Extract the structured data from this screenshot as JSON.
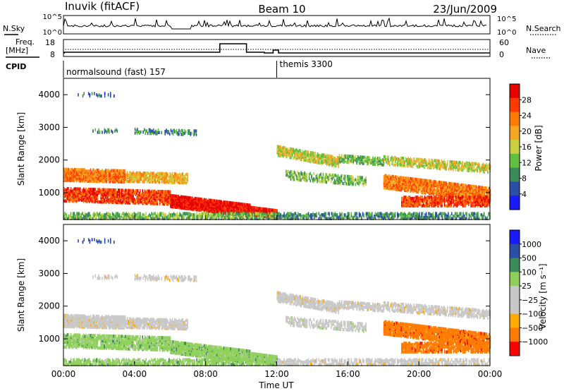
{
  "header": {
    "station": "Inuvik (fitACF)",
    "beam": "Beam 10",
    "date": "23/Jun/2009"
  },
  "top_panel": {
    "left_label": "N.Sky",
    "left_ticks": [
      "10^5",
      "10^0"
    ],
    "right_label": "N.Search",
    "right_ticks": [
      "10^5",
      "10^0"
    ],
    "right_legend_style": "dotted"
  },
  "freq_panel": {
    "left_label_1": "Freq.",
    "left_label_2": "[MHz]",
    "left_ticks": [
      "18",
      "8"
    ],
    "right_label": "Nave",
    "right_ticks": [
      "60",
      "0"
    ],
    "right_legend_style": "dotted"
  },
  "cpid": {
    "label": "CPID",
    "segments": [
      {
        "name": "normalsound (fast) 157",
        "start_hour": 0
      },
      {
        "name": "themis 3300",
        "start_hour": 12
      }
    ]
  },
  "colors": {
    "power": [
      "#1a1aff",
      "#2b4fa8",
      "#3a8a5a",
      "#5fbf3f",
      "#c8d040",
      "#f5a623",
      "#ff7a00",
      "#ff3a00",
      "#e60000"
    ],
    "velocity": [
      "#ff0000",
      "#ff7a00",
      "#ffaa00",
      "#c8c8c8",
      "#c8c8c8",
      "#8fd05a",
      "#3a8a5a",
      "#2b4fa8",
      "#1a1aff"
    ]
  },
  "chart_data": [
    {
      "type": "heatmap",
      "name": "power",
      "ylabel": "Slant Range [km]",
      "xlabel": "",
      "xlim": [
        0,
        24
      ],
      "ylim": [
        180,
        4500
      ],
      "yticks": [
        "4000",
        "3000",
        "2000",
        "1000"
      ],
      "xticks": [
        "00:00",
        "04:00",
        "08:00",
        "12:00",
        "16:00",
        "20:00",
        "00:00"
      ],
      "colorbar": {
        "label": "Power [dB]",
        "ticks": [
          "28",
          "24",
          "20",
          "16",
          "12",
          "8",
          "4"
        ]
      }
    },
    {
      "type": "heatmap",
      "name": "velocity",
      "ylabel": "Slant Range [km]",
      "xlabel": "Time UT",
      "xlim": [
        0,
        24
      ],
      "ylim": [
        180,
        4500
      ],
      "yticks": [
        "4000",
        "3000",
        "2000",
        "1000"
      ],
      "xticks": [
        "00:00",
        "04:00",
        "08:00",
        "12:00",
        "16:00",
        "20:00",
        "00:00"
      ],
      "colorbar": {
        "label": "Velocity [m s⁻¹]",
        "ticks": [
          "1000",
          "500",
          "100",
          "25",
          "−25",
          "−100",
          "−500",
          "−1000"
        ]
      }
    }
  ]
}
